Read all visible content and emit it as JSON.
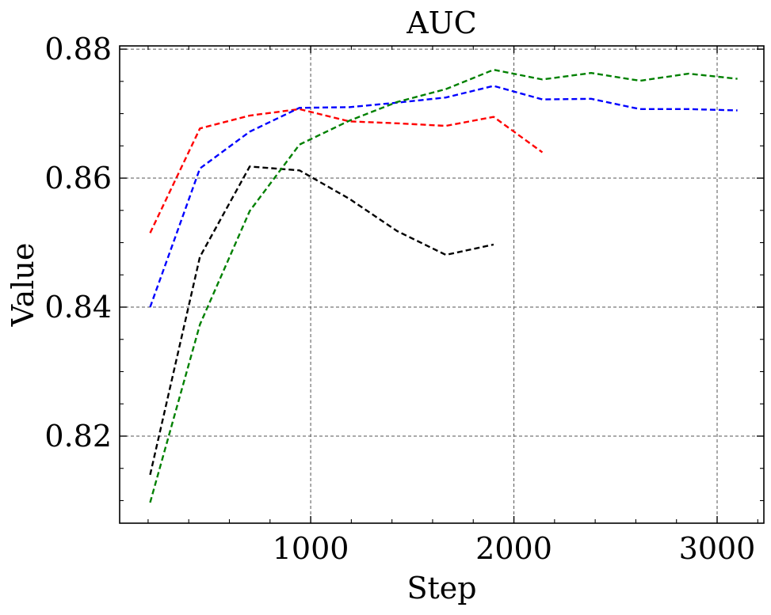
{
  "chart_data": {
    "type": "line",
    "title": "AUC",
    "xlabel": "Step",
    "ylabel": "Value",
    "xlim": [
      60,
      3230
    ],
    "ylim": [
      0.8065,
      0.8805
    ],
    "xticks": [
      1000,
      2000,
      3000
    ],
    "xtick_labels": [
      "1000",
      "2000",
      "3000"
    ],
    "yticks": [
      0.82,
      0.84,
      0.86,
      0.88
    ],
    "ytick_labels": [
      "0.82",
      "0.84",
      "0.86",
      "0.88"
    ],
    "x_minor_ticks": [
      200,
      400,
      600,
      800,
      1200,
      1400,
      1600,
      1800,
      2200,
      2400,
      2600,
      2800,
      3200
    ],
    "y_minor_ticks": [
      0.81,
      0.815,
      0.825,
      0.83,
      0.835,
      0.845,
      0.85,
      0.855,
      0.865,
      0.87,
      0.875
    ],
    "grid": true,
    "line_style": "dashed",
    "series": [
      {
        "color": "#ff0000",
        "x": [
          210,
          455,
          700,
          945,
          1190,
          1425,
          1665,
          1900,
          2140
        ],
        "y": [
          0.8515,
          0.8677,
          0.8697,
          0.8707,
          0.8688,
          0.8685,
          0.8681,
          0.8695,
          0.864
        ]
      },
      {
        "color": "#0000ff",
        "x": [
          210,
          455,
          700,
          945,
          1190,
          1425,
          1665,
          1900,
          2140,
          2380,
          2620,
          2860,
          3100
        ],
        "y": [
          0.84,
          0.8615,
          0.8672,
          0.8709,
          0.871,
          0.8717,
          0.8725,
          0.8743,
          0.8722,
          0.8723,
          0.8707,
          0.8707,
          0.8705
        ]
      },
      {
        "color": "#000000",
        "x": [
          210,
          455,
          700,
          945,
          1190,
          1425,
          1665,
          1900
        ],
        "y": [
          0.814,
          0.8478,
          0.8618,
          0.8612,
          0.8568,
          0.8518,
          0.8481,
          0.8497
        ]
      },
      {
        "color": "#008000",
        "x": [
          210,
          455,
          700,
          945,
          1190,
          1425,
          1665,
          1900,
          2140,
          2380,
          2620,
          2860,
          3100
        ],
        "y": [
          0.8097,
          0.8373,
          0.8549,
          0.8652,
          0.8689,
          0.8718,
          0.8738,
          0.8768,
          0.8753,
          0.8763,
          0.8751,
          0.8762,
          0.8754
        ]
      }
    ]
  }
}
